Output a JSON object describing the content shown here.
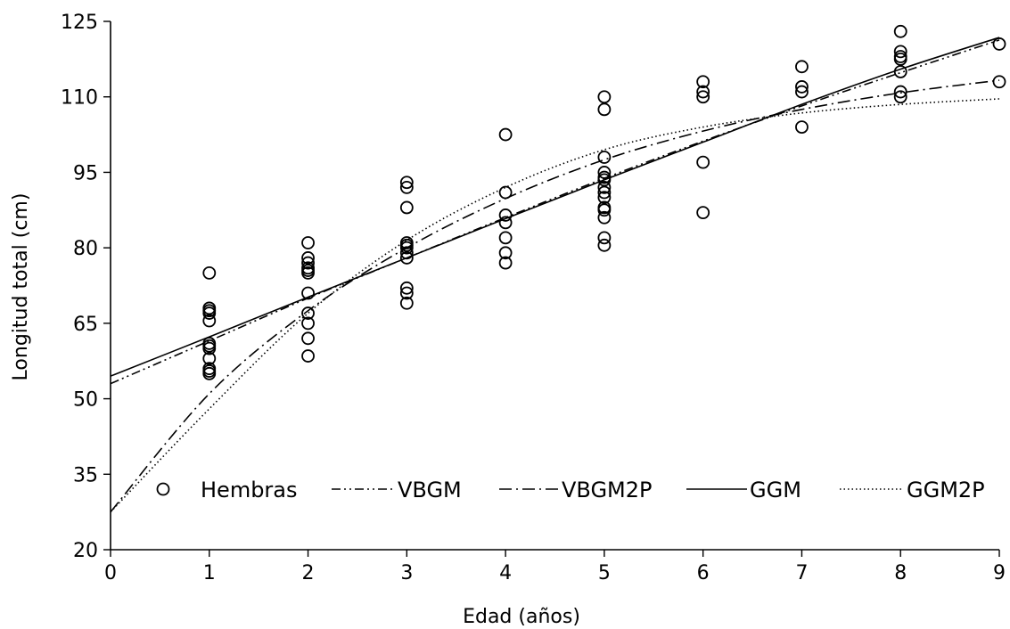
{
  "chart_data": {
    "type": "scatter",
    "xlabel": "Edad (años)",
    "ylabel": "Longitud total (cm)",
    "xlim": [
      0,
      9
    ],
    "ylim": [
      20,
      125
    ],
    "xticks": [
      0,
      1,
      2,
      3,
      4,
      5,
      6,
      7,
      8,
      9
    ],
    "yticks": [
      20,
      35,
      50,
      65,
      80,
      95,
      110,
      125
    ],
    "grid": false,
    "legend_position": "bottom, inside plot",
    "legend": [
      "Hembras",
      "VBGM",
      "VBGM2P",
      "GGM",
      "GGM2P"
    ],
    "points": {
      "name": "Hembras",
      "marker": "open-circle",
      "x": [
        1,
        1,
        1,
        1,
        1,
        1,
        1,
        1,
        1,
        1,
        1,
        1,
        2,
        2,
        2,
        2,
        2,
        2,
        2,
        2,
        2,
        2,
        2,
        3,
        3,
        3,
        3,
        3,
        3,
        3,
        3,
        3,
        3,
        3,
        4,
        4,
        4,
        4,
        4,
        4,
        4,
        5,
        5,
        5,
        5,
        5,
        5,
        5,
        5,
        5,
        5,
        5,
        5,
        5,
        5,
        6,
        6,
        6,
        6,
        6,
        7,
        7,
        7,
        7,
        8,
        8,
        8,
        8,
        8,
        8,
        8,
        9,
        9
      ],
      "y": [
        75,
        68,
        67,
        65.5,
        61,
        60,
        58,
        56,
        55,
        55.5,
        60.5,
        67.5,
        81,
        78,
        76,
        75,
        75.5,
        71,
        67,
        65,
        62,
        58.5,
        77,
        93,
        92,
        88,
        81,
        80,
        79,
        78,
        72,
        71,
        69,
        80.5,
        102.5,
        91,
        86.5,
        85,
        82,
        79,
        77,
        110,
        107.5,
        98,
        95,
        93.5,
        92,
        90,
        88,
        86,
        82,
        80.5,
        94,
        91,
        87.5,
        113,
        111,
        110,
        97,
        87,
        116,
        112,
        111,
        104,
        123,
        119,
        118,
        117.5,
        115,
        111,
        110,
        120.5,
        113
      ]
    },
    "series": [
      {
        "name": "VBGM",
        "style": "dash-dot-dot",
        "x": [
          0,
          1,
          2,
          3,
          4,
          5,
          6,
          7,
          8,
          9
        ],
        "y": [
          53,
          61.5,
          70,
          78,
          86,
          93.8,
          101.2,
          108.2,
          114.8,
          121.3
        ]
      },
      {
        "name": "VBGM2P",
        "style": "dash-dot",
        "x": [
          0,
          1,
          2,
          3,
          4,
          5,
          6,
          7,
          8,
          9
        ],
        "y": [
          27.5,
          51,
          67.5,
          80,
          89.8,
          97.5,
          103.2,
          107.5,
          110.8,
          113.3
        ]
      },
      {
        "name": "GGM",
        "style": "solid",
        "x": [
          0,
          1,
          2,
          3,
          4,
          5,
          6,
          7,
          8,
          9
        ],
        "y": [
          54.5,
          62.3,
          70.2,
          78,
          85.8,
          93.5,
          101,
          108.5,
          115.5,
          121.8
        ]
      },
      {
        "name": "GGM2P",
        "style": "dotted",
        "x": [
          0,
          1,
          2,
          3,
          4,
          5,
          6,
          7,
          8,
          9
        ],
        "y": [
          27.5,
          48,
          67,
          81.5,
          92,
          99.5,
          104,
          106.8,
          108.5,
          109.6
        ]
      }
    ]
  }
}
